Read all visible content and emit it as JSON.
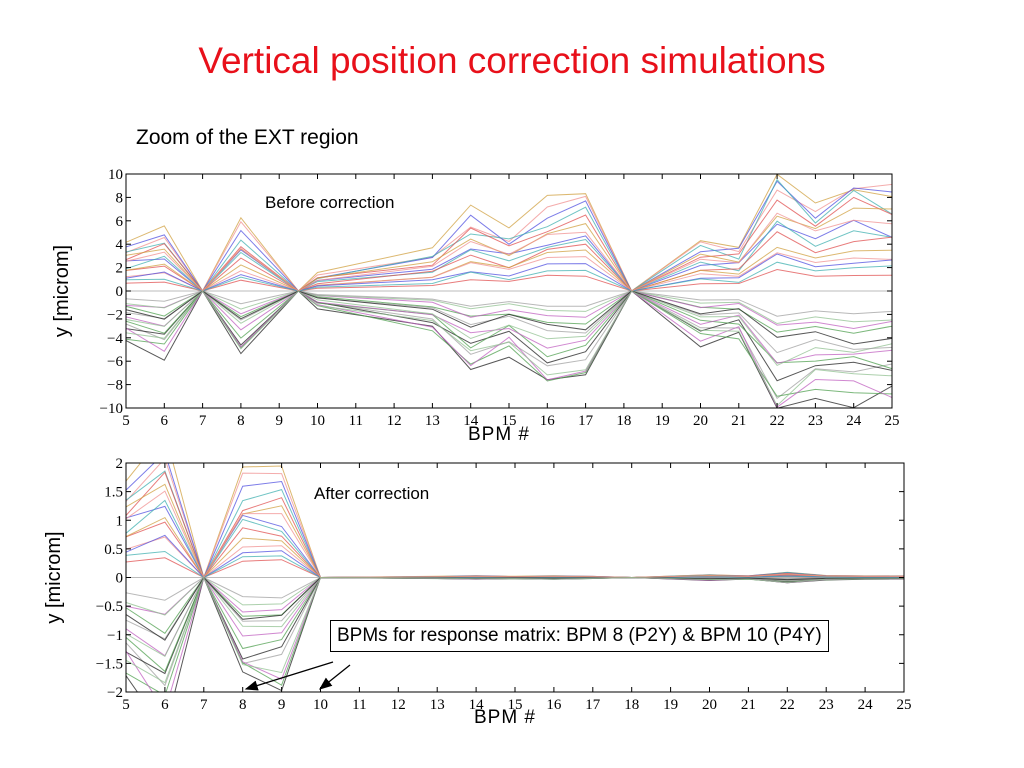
{
  "slide": {
    "title": "Vertical position correction simulations",
    "subtitle": "Zoom of the EXT region",
    "callout": "BPMs for response matrix: BPM 8 (P2Y) & BPM 10 (P4Y)"
  },
  "chart_data": [
    {
      "type": "line",
      "annotation": "Before correction",
      "xlabel": "BPM #",
      "ylabel": "y [microm]",
      "xlim": [
        5,
        25
      ],
      "ylim": [
        -10,
        10
      ],
      "x": [
        5,
        6,
        7,
        8,
        9.5,
        10,
        13,
        14,
        15,
        16,
        17,
        18.2,
        20,
        21,
        22,
        23,
        24,
        25
      ],
      "xticks": [
        5,
        6,
        7,
        8,
        9,
        10,
        11,
        12,
        13,
        14,
        15,
        16,
        17,
        18,
        19,
        20,
        21,
        22,
        23,
        24,
        25
      ],
      "yticks": [
        -10,
        -8,
        -6,
        -4,
        -2,
        0,
        2,
        4,
        6,
        8,
        10
      ],
      "grid": false,
      "series_count": 30,
      "envelope": {
        "description": "lines pass through zero at BPM 7, 9.5 and 18.2; amplitudes shown as max envelope",
        "values": [
          4.2,
          5.5,
          0,
          6.0,
          0,
          1.5,
          3.5,
          7.0,
          5.2,
          8.0,
          8.3,
          0,
          4.5,
          4.0,
          11.0,
          8.5,
          10.0,
          9.5
        ]
      },
      "series_colors": [
        "#e05050",
        "#50a050",
        "#5050e0",
        "#a0a0a0",
        "#d0a040",
        "#c060c0",
        "#40b0b0",
        "#202020",
        "#f09090",
        "#90c090"
      ]
    },
    {
      "type": "line",
      "annotation": "After correction",
      "xlabel": "BPM #",
      "ylabel": "y [microm]",
      "xlim": [
        5,
        25
      ],
      "ylim": [
        -2,
        2
      ],
      "x": [
        5,
        6,
        7,
        8,
        9,
        10,
        13,
        14,
        15,
        16,
        17,
        18,
        20,
        21,
        22,
        23,
        24,
        25
      ],
      "xticks": [
        5,
        6,
        7,
        8,
        9,
        10,
        11,
        12,
        13,
        14,
        15,
        16,
        17,
        18,
        19,
        20,
        21,
        22,
        23,
        24,
        25
      ],
      "yticks": [
        -2,
        -1.5,
        -1,
        -0.5,
        0,
        0.5,
        1,
        1.5,
        2
      ],
      "grid": false,
      "series_count": 30,
      "envelope": {
        "description": "lines cross zero at BPM 7 and converge to near zero from BPM 10 onward",
        "values": [
          1.7,
          2.5,
          0,
          1.85,
          1.85,
          0,
          0.02,
          0.03,
          0.02,
          0.03,
          0.02,
          0,
          0.05,
          0.03,
          0.1,
          0.04,
          0.03,
          0.03
        ]
      },
      "series_colors": [
        "#e05050",
        "#50a050",
        "#5050e0",
        "#a0a0a0",
        "#d0a040",
        "#c060c0",
        "#40b0b0",
        "#202020",
        "#f09090",
        "#90c090"
      ]
    }
  ]
}
